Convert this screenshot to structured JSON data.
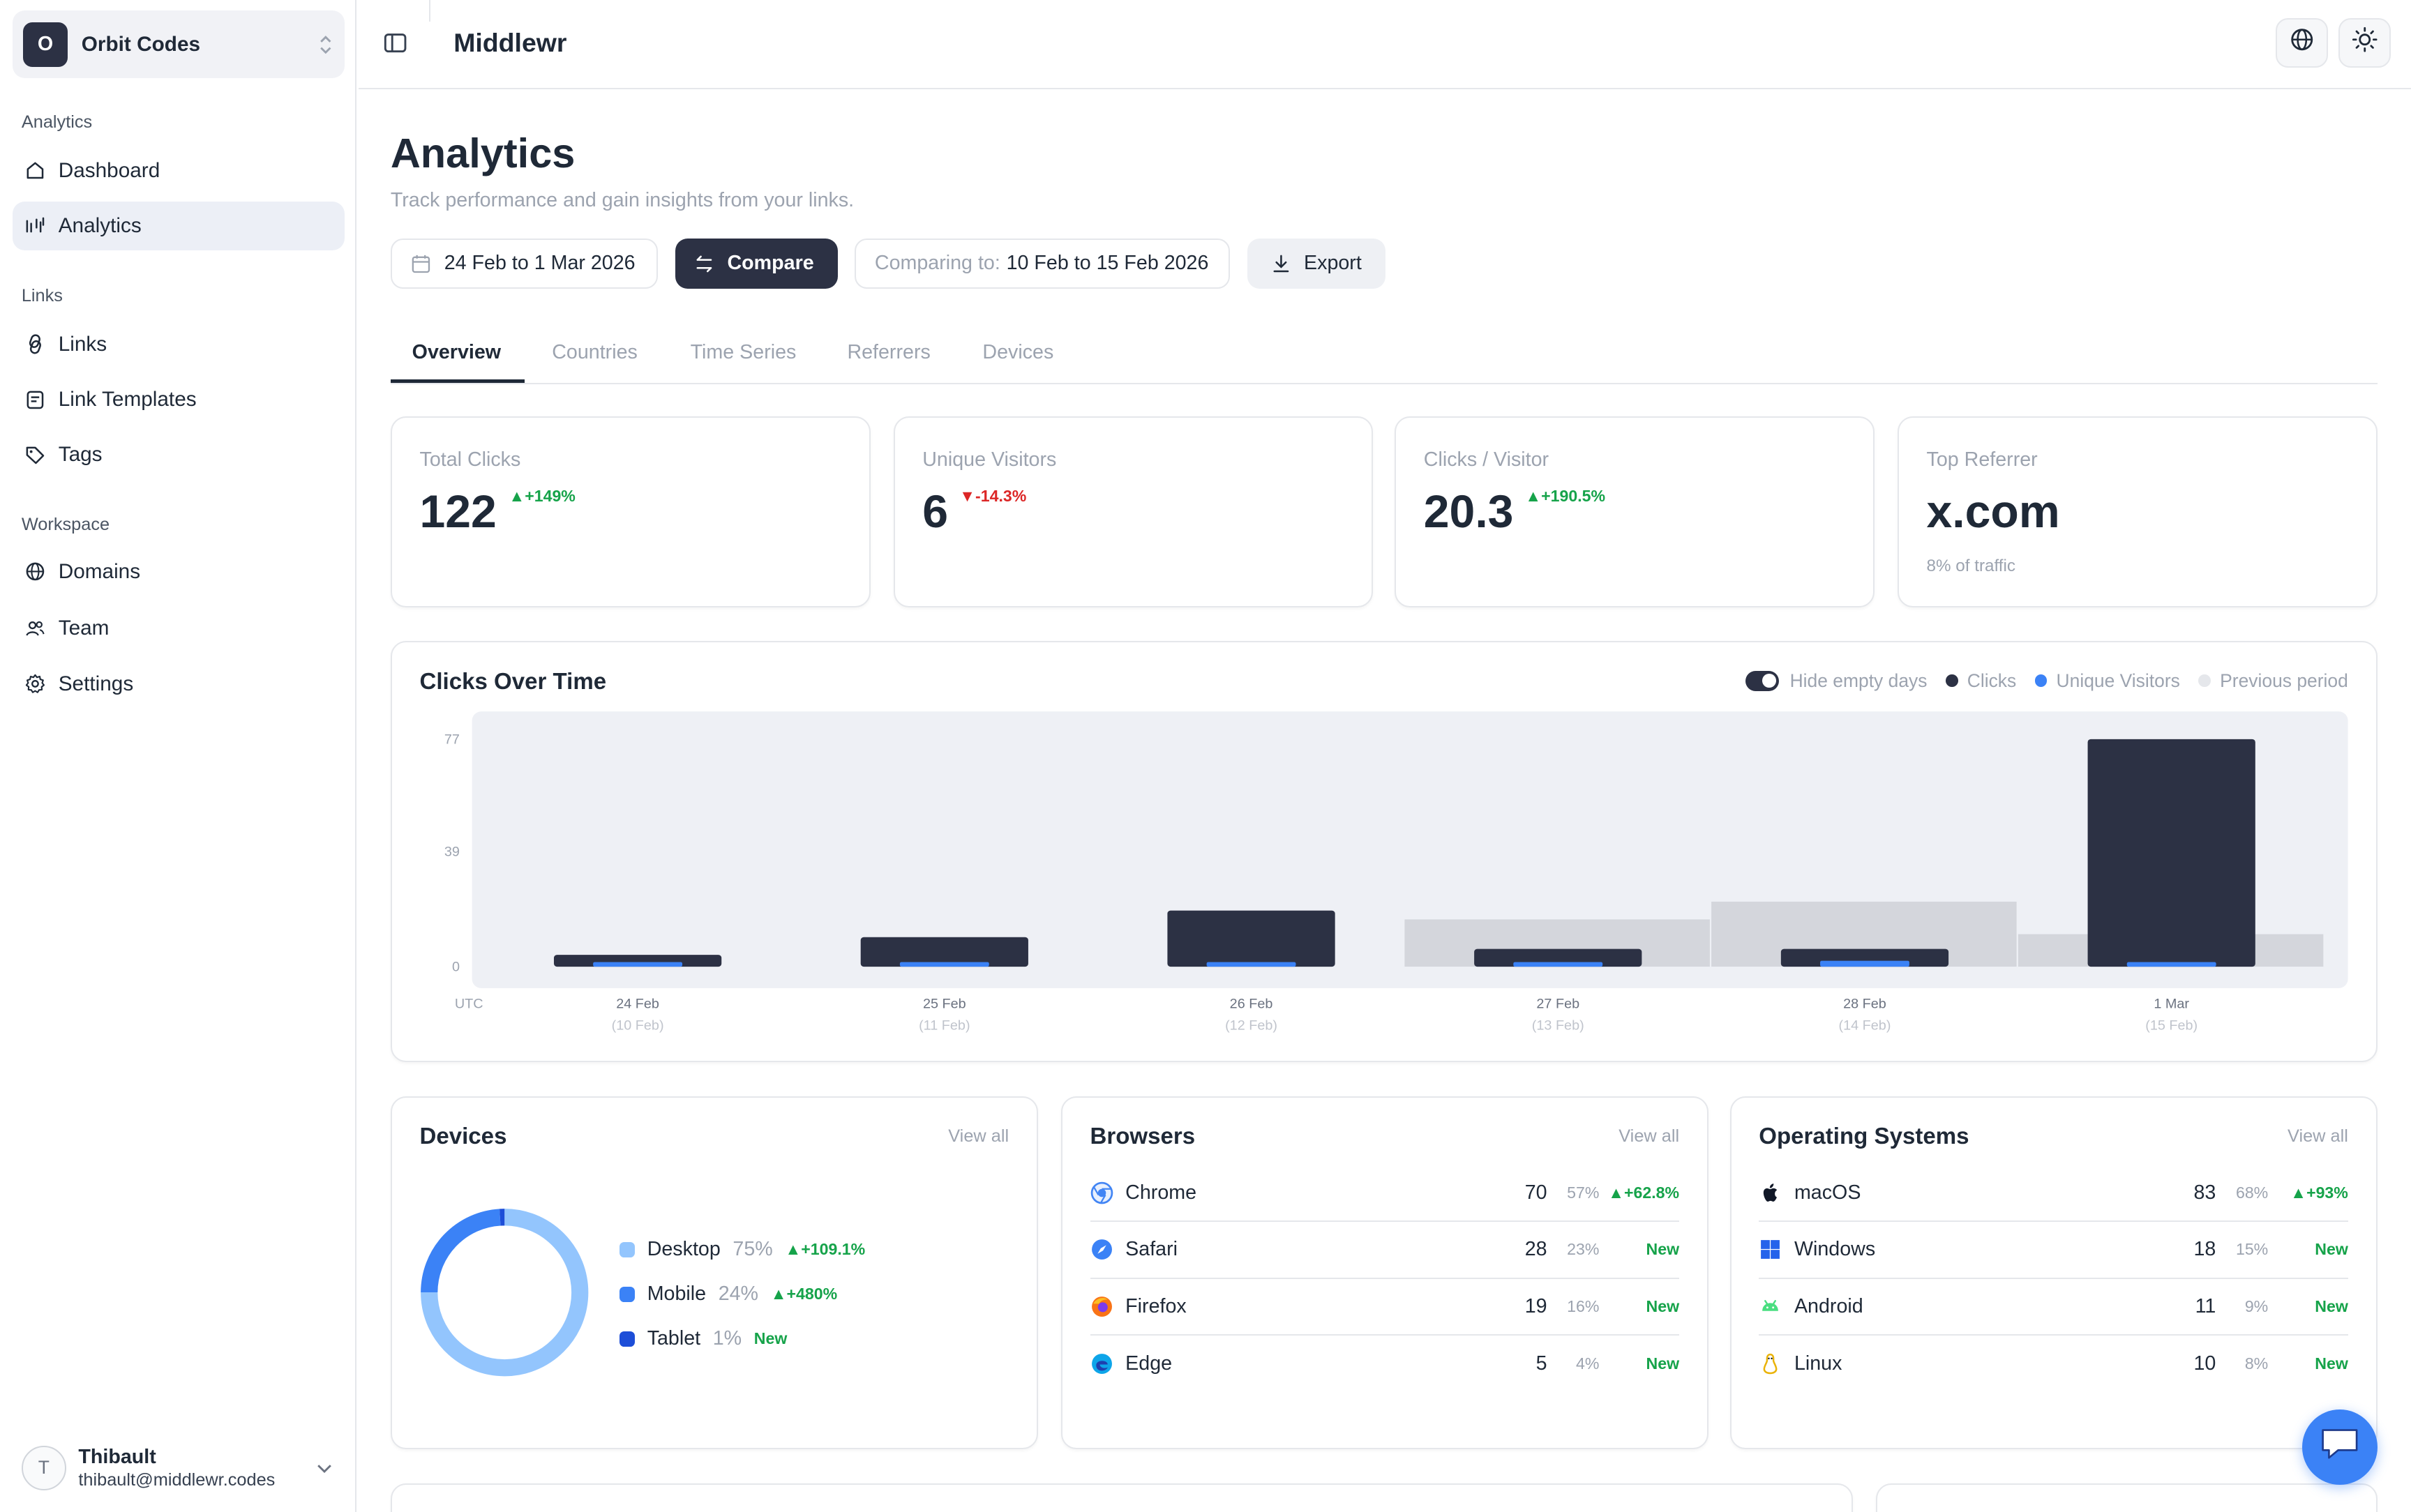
{
  "sidebar": {
    "org": {
      "initial": "O",
      "name": "Orbit Codes"
    },
    "sections": [
      {
        "label": "Analytics",
        "items": [
          {
            "label": "Dashboard",
            "icon": "home-icon"
          },
          {
            "label": "Analytics",
            "icon": "analytics-icon",
            "active": true
          }
        ]
      },
      {
        "label": "Links",
        "items": [
          {
            "label": "Links",
            "icon": "link-icon"
          },
          {
            "label": "Link Templates",
            "icon": "template-icon"
          },
          {
            "label": "Tags",
            "icon": "tag-icon"
          }
        ]
      },
      {
        "label": "Workspace",
        "items": [
          {
            "label": "Domains",
            "icon": "globe-icon"
          },
          {
            "label": "Team",
            "icon": "team-icon"
          },
          {
            "label": "Settings",
            "icon": "gear-icon"
          }
        ]
      }
    ],
    "user": {
      "initial": "T",
      "name": "Thibault",
      "email": "thibault@middlewr.codes"
    }
  },
  "topbar": {
    "title": "Middlewr"
  },
  "page": {
    "title": "Analytics",
    "subtitle": "Track performance and gain insights from your links.",
    "date_range": "24 Feb to 1 Mar 2026",
    "compare_label": "Compare",
    "comparing_prefix": "Comparing to:",
    "comparing_range": "10 Feb to 15 Feb 2026",
    "export_label": "Export"
  },
  "tabs": [
    "Overview",
    "Countries",
    "Time Series",
    "Referrers",
    "Devices"
  ],
  "kpis": {
    "total_clicks": {
      "label": "Total Clicks",
      "value": "122",
      "delta": "+149%"
    },
    "unique_visitors": {
      "label": "Unique Visitors",
      "value": "6",
      "delta": "-14.3%"
    },
    "clicks_per_visitor": {
      "label": "Clicks / Visitor",
      "value": "20.3",
      "delta": "+190.5%"
    },
    "top_referrer": {
      "label": "Top Referrer",
      "value": "x.com",
      "foot": "8% of traffic"
    }
  },
  "chart_data": {
    "type": "bar",
    "title": "Clicks Over Time",
    "toggle_label": "Hide empty days",
    "legend": [
      "Clicks",
      "Unique Visitors",
      "Previous period"
    ],
    "legend_colors": {
      "Clicks": "#2c3144",
      "Unique Visitors": "#3b82f6",
      "Previous period": "#e5e7eb"
    },
    "timezone_label": "UTC",
    "categories": [
      "24 Feb",
      "25 Feb",
      "26 Feb",
      "27 Feb",
      "28 Feb",
      "1 Mar"
    ],
    "previous_categories": [
      "(10 Feb)",
      "(11 Feb)",
      "(12 Feb)",
      "(13 Feb)",
      "(14 Feb)",
      "(15 Feb)"
    ],
    "y_ticks": [
      "77",
      "39",
      "0"
    ],
    "ylim": [
      0,
      77
    ],
    "series": [
      {
        "name": "Clicks",
        "values": [
          4,
          10,
          19,
          6,
          6,
          77
        ]
      },
      {
        "name": "Unique Visitors",
        "values": [
          1,
          1,
          1,
          1,
          2,
          1
        ]
      },
      {
        "name": "Previous period",
        "values": [
          0,
          0,
          0,
          16,
          22,
          11
        ]
      }
    ]
  },
  "devices": {
    "title": "Devices",
    "view_all": "View all",
    "items": [
      {
        "name": "Desktop",
        "pct": "75%",
        "change": "+109.1%",
        "color": "#93c5fd",
        "share": 0.75
      },
      {
        "name": "Mobile",
        "pct": "24%",
        "change": "+480%",
        "color": "#3b82f6",
        "share": 0.24
      },
      {
        "name": "Tablet",
        "pct": "1%",
        "change": "New",
        "color": "#1d4ed8",
        "share": 0.01
      }
    ]
  },
  "browsers": {
    "title": "Browsers",
    "view_all": "View all",
    "items": [
      {
        "name": "Chrome",
        "count": "70",
        "pct": "57%",
        "change": "+62.8%",
        "icon": "chrome-icon"
      },
      {
        "name": "Safari",
        "count": "28",
        "pct": "23%",
        "change": "New",
        "icon": "safari-icon"
      },
      {
        "name": "Firefox",
        "count": "19",
        "pct": "16%",
        "change": "New",
        "icon": "firefox-icon"
      },
      {
        "name": "Edge",
        "count": "5",
        "pct": "4%",
        "change": "New",
        "icon": "edge-icon"
      }
    ]
  },
  "os": {
    "title": "Operating Systems",
    "view_all": "View all",
    "items": [
      {
        "name": "macOS",
        "count": "83",
        "pct": "68%",
        "change": "+93%",
        "icon": "apple-icon"
      },
      {
        "name": "Windows",
        "count": "18",
        "pct": "15%",
        "change": "New",
        "icon": "windows-icon"
      },
      {
        "name": "Android",
        "count": "11",
        "pct": "9%",
        "change": "New",
        "icon": "android-icon"
      },
      {
        "name": "Linux",
        "count": "10",
        "pct": "8%",
        "change": "New",
        "icon": "linux-icon"
      }
    ]
  }
}
